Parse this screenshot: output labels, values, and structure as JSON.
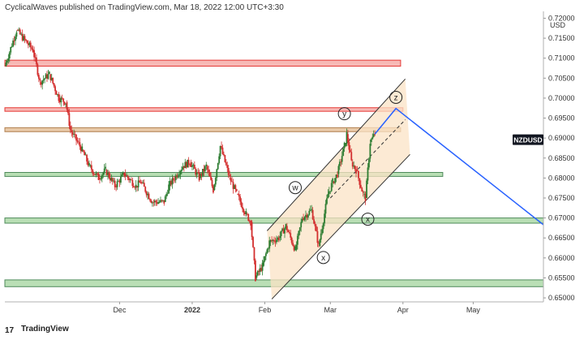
{
  "header": {
    "publish_line": "CyclicalWaves published on TradingView.com, Mar 18, 2022 12:00 UTC+3:30"
  },
  "footer": {
    "brand": "TradingView",
    "logo_text": "17"
  },
  "chart_data": {
    "type": "candlestick",
    "symbol": "NZDUSD",
    "currency": "USD",
    "colors": {
      "up": "#26a69a",
      "down": "#ef5350",
      "bull_candle": "#2e7d32",
      "bear_candle": "#d32f2f",
      "channel": "#333333",
      "projection": "#2962ff",
      "price_tag": "#131722"
    },
    "y_axis": {
      "ticks": [
        "0.72000",
        "0.71500",
        "0.71000",
        "0.70500",
        "0.70000",
        "0.69500",
        "0.69000",
        "0.68500",
        "0.68000",
        "0.67500",
        "0.67000",
        "0.66500",
        "0.66000",
        "0.65500",
        "0.65000"
      ],
      "range": [
        0.649,
        0.7205
      ]
    },
    "x_axis": {
      "ticks": [
        "Dec",
        "2022",
        "Feb",
        "Mar",
        "Apr",
        "May"
      ],
      "tick_dates": [
        "2021-12-01",
        "2022-01-01",
        "2022-02-01",
        "2022-03-01",
        "2022-04-01",
        "2022-05-01"
      ],
      "range": [
        "2021-10-13",
        "2022-05-31"
      ]
    },
    "zones": [
      {
        "color": "red",
        "from": "2021-10-13",
        "to": "2022-03-31",
        "low": 0.708,
        "high": 0.7095
      },
      {
        "color": "red",
        "from": "2021-10-13",
        "to": "2022-04-01",
        "low": 0.6967,
        "high": 0.6976
      },
      {
        "color": "brown",
        "from": "2021-10-13",
        "to": "2022-03-31",
        "low": 0.6916,
        "high": 0.6926
      },
      {
        "color": "green",
        "from": "2021-10-13",
        "to": "2022-04-18",
        "low": 0.6804,
        "high": 0.6814
      },
      {
        "color": "green",
        "from": "2021-10-13",
        "to": "2022-05-31",
        "low": 0.6687,
        "high": 0.67
      },
      {
        "color": "green",
        "from": "2021-10-13",
        "to": "2022-05-31",
        "low": 0.6528,
        "high": 0.6545
      }
    ],
    "price_path": [
      [
        "2021-10-13",
        0.708
      ],
      [
        "2021-10-18",
        0.717
      ],
      [
        "2021-10-25",
        0.712
      ],
      [
        "2021-10-28",
        0.704
      ],
      [
        "2021-11-01",
        0.706
      ],
      [
        "2021-11-05",
        0.7
      ],
      [
        "2021-11-08",
        0.699
      ],
      [
        "2021-11-10",
        0.692
      ],
      [
        "2021-11-15",
        0.687
      ],
      [
        "2021-11-18",
        0.683
      ],
      [
        "2021-11-22",
        0.68
      ],
      [
        "2021-11-25",
        0.682
      ],
      [
        "2021-11-29",
        0.678
      ],
      [
        "2021-12-03",
        0.681
      ],
      [
        "2021-12-08",
        0.678
      ],
      [
        "2021-12-10",
        0.679
      ],
      [
        "2021-12-15",
        0.674
      ],
      [
        "2021-12-20",
        0.674
      ],
      [
        "2021-12-22",
        0.678
      ],
      [
        "2021-12-28",
        0.683
      ],
      [
        "2021-12-31",
        0.684
      ],
      [
        "2022-01-04",
        0.68
      ],
      [
        "2022-01-07",
        0.683
      ],
      [
        "2022-01-10",
        0.677
      ],
      [
        "2022-01-13",
        0.688
      ],
      [
        "2022-01-17",
        0.68
      ],
      [
        "2022-01-20",
        0.676
      ],
      [
        "2022-01-24",
        0.671
      ],
      [
        "2022-01-26",
        0.669
      ],
      [
        "2022-01-28",
        0.655
      ],
      [
        "2022-01-31",
        0.658
      ],
      [
        "2022-02-03",
        0.664
      ],
      [
        "2022-02-07",
        0.665
      ],
      [
        "2022-02-10",
        0.668
      ],
      [
        "2022-02-14",
        0.662
      ],
      [
        "2022-02-17",
        0.67
      ],
      [
        "2022-02-21",
        0.672
      ],
      [
        "2022-02-24",
        0.663
      ],
      [
        "2022-02-28",
        0.676
      ],
      [
        "2022-03-02",
        0.679
      ],
      [
        "2022-03-04",
        0.681
      ],
      [
        "2022-03-07",
        0.688
      ],
      [
        "2022-03-08",
        0.691
      ],
      [
        "2022-03-10",
        0.684
      ],
      [
        "2022-03-12",
        0.682
      ],
      [
        "2022-03-15",
        0.676
      ],
      [
        "2022-03-16",
        0.675
      ],
      [
        "2022-03-18",
        0.689
      ],
      [
        "2022-03-20",
        0.691
      ]
    ],
    "channel": {
      "upper": [
        [
          "2022-02-02",
          0.6668
        ],
        [
          "2022-04-02",
          0.7048
        ]
      ],
      "lower": [
        [
          "2022-02-04",
          0.6497
        ],
        [
          "2022-04-04",
          0.6859
        ]
      ],
      "middle_dashed": [
        [
          "2022-03-01",
          0.675
        ],
        [
          "2022-04-02",
          0.6946
        ]
      ],
      "fill_from": "2022-02-02",
      "fill_to": "2022-04-02"
    },
    "projection": [
      [
        "2022-03-20",
        0.691
      ],
      [
        "2022-03-29",
        0.6974
      ],
      [
        "2022-05-31",
        0.6683
      ]
    ],
    "wave_labels": [
      {
        "text": "w",
        "date": "2022-02-14",
        "price": 0.6776
      },
      {
        "text": "x",
        "date": "2022-02-26",
        "price": 0.6601
      },
      {
        "text": "y",
        "date": "2022-03-07",
        "price": 0.6961
      },
      {
        "text": "x",
        "date": "2022-03-17",
        "price": 0.6697
      },
      {
        "text": "z",
        "date": "2022-03-29",
        "price": 0.7002
      }
    ],
    "last_price_tag": {
      "label": "NZDUSD",
      "price": 0.6895
    }
  }
}
